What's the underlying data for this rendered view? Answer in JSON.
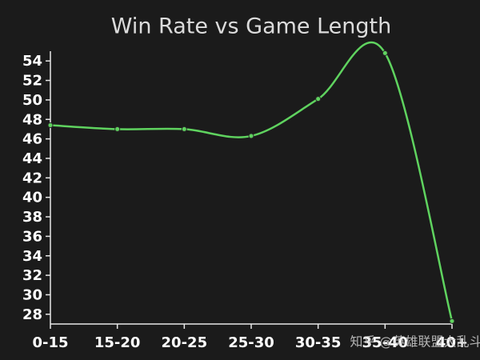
{
  "chart_data": {
    "type": "line",
    "title": "Win Rate vs Game Length",
    "categories": [
      "0-15",
      "15-20",
      "20-25",
      "25-30",
      "30-35",
      "35-40",
      "40+"
    ],
    "series": [
      {
        "name": "Win Rate",
        "color": "#5fd35f",
        "values": [
          47.4,
          47.0,
          47.0,
          46.3,
          50.1,
          54.8,
          27.3
        ]
      }
    ],
    "ylim": [
      27,
      55
    ],
    "yticks": [
      28,
      30,
      32,
      34,
      36,
      38,
      40,
      42,
      44,
      46,
      48,
      50,
      52,
      54
    ],
    "grid": false,
    "smooth": true,
    "watermark": "知乎 @英雄联盟大乱斗"
  }
}
